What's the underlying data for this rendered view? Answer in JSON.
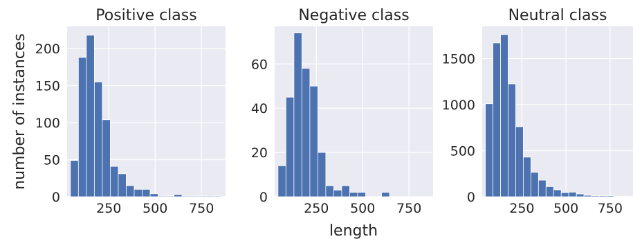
{
  "figure": {
    "ylabel": "number of instances",
    "xlabel": "length"
  },
  "colors": {
    "bar": "#4c72b0",
    "panel_bg": "#eaeaf2",
    "grid": "#ffffff",
    "text": "#262626"
  },
  "chart_data": [
    {
      "type": "bar",
      "title": "Positive class",
      "bin_edges": [
        43,
        86,
        129,
        172,
        215,
        258,
        301,
        344,
        387,
        430,
        473,
        516,
        559,
        602,
        645,
        688,
        731,
        774,
        817,
        860
      ],
      "values": [
        49,
        188,
        218,
        155,
        104,
        41,
        31,
        15,
        10,
        10,
        4,
        1,
        1,
        3,
        1,
        1,
        1,
        1,
        1
      ],
      "xlim": [
        25,
        880
      ],
      "ylim": [
        0,
        230
      ],
      "xticks": [
        250,
        500,
        750
      ],
      "xtick_labels": [
        "250",
        "500",
        "750"
      ],
      "yticks": [
        0,
        50,
        100,
        150,
        200
      ],
      "ytick_labels": [
        "0",
        "50",
        "100",
        "150",
        "200"
      ],
      "grid": true
    },
    {
      "type": "bar",
      "title": "Negative class",
      "bin_edges": [
        43,
        86,
        129,
        172,
        215,
        258,
        301,
        344,
        387,
        430,
        473,
        516,
        559,
        602,
        645,
        688,
        731,
        774,
        817,
        860
      ],
      "values": [
        14,
        45,
        74,
        58,
        50,
        20,
        5,
        3,
        5,
        2,
        2,
        0,
        0,
        2,
        0,
        0,
        0,
        0,
        0
      ],
      "xlim": [
        25,
        880
      ],
      "ylim": [
        0,
        77
      ],
      "xticks": [
        250,
        500,
        750
      ],
      "xtick_labels": [
        "250",
        "500",
        "750"
      ],
      "yticks": [
        0,
        20,
        40,
        60
      ],
      "ytick_labels": [
        "0",
        "20",
        "40",
        "60"
      ],
      "grid": true
    },
    {
      "type": "bar",
      "title": "Neutral class",
      "bin_edges": [
        43,
        86,
        129,
        172,
        215,
        258,
        301,
        344,
        387,
        430,
        473,
        516,
        559,
        602,
        645,
        688,
        731,
        774,
        817,
        860
      ],
      "values": [
        1010,
        1670,
        1760,
        1225,
        760,
        430,
        265,
        180,
        110,
        75,
        45,
        50,
        30,
        15,
        10,
        10,
        10,
        5,
        5
      ],
      "xlim": [
        25,
        880
      ],
      "ylim": [
        0,
        1850
      ],
      "xticks": [
        250,
        500,
        750
      ],
      "xtick_labels": [
        "250",
        "500",
        "750"
      ],
      "yticks": [
        0,
        500,
        1000,
        1500
      ],
      "ytick_labels": [
        "0",
        "500",
        "1000",
        "1500"
      ],
      "grid": true
    }
  ]
}
